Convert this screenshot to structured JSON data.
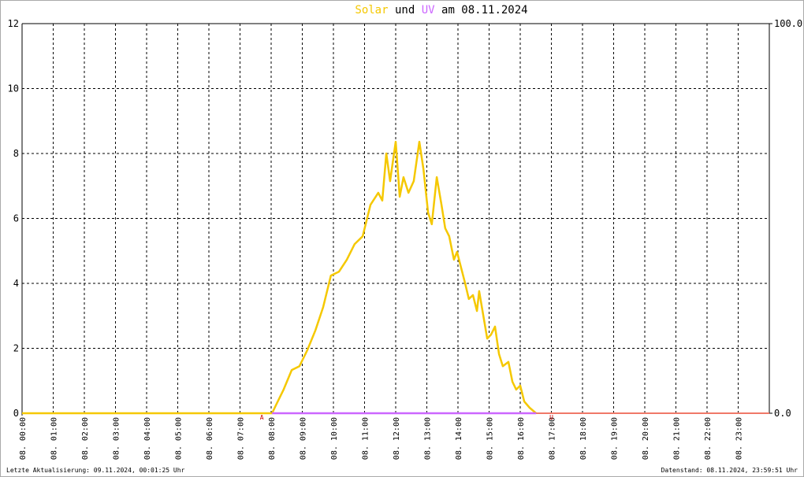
{
  "chart_data": {
    "type": "line",
    "title": [
      {
        "text": "Solar",
        "color": "#f5c800"
      },
      {
        "text": "und",
        "color": "#000000"
      },
      {
        "text": "UV",
        "color": "#cc66ff"
      },
      {
        "text": "am 08.11.2024",
        "color": "#000000"
      }
    ],
    "xlim": [
      0,
      24
    ],
    "xticks": [
      {
        "value": 0,
        "label": "08. 00:00"
      },
      {
        "value": 1,
        "label": "08. 01:00"
      },
      {
        "value": 2,
        "label": "08. 02:00"
      },
      {
        "value": 3,
        "label": "08. 03:00"
      },
      {
        "value": 4,
        "label": "08. 04:00"
      },
      {
        "value": 5,
        "label": "08. 05:00"
      },
      {
        "value": 6,
        "label": "08. 06:00"
      },
      {
        "value": 7,
        "label": "08. 07:00"
      },
      {
        "value": 8,
        "label": "08. 08:00"
      },
      {
        "value": 9,
        "label": "08. 09:00"
      },
      {
        "value": 10,
        "label": "08. 10:00"
      },
      {
        "value": 11,
        "label": "08. 11:00"
      },
      {
        "value": 12,
        "label": "08. 12:00"
      },
      {
        "value": 13,
        "label": "08. 13:00"
      },
      {
        "value": 14,
        "label": "08. 14:00"
      },
      {
        "value": 15,
        "label": "08. 15:00"
      },
      {
        "value": 16,
        "label": "08. 16:00"
      },
      {
        "value": 17,
        "label": "08. 17:00"
      },
      {
        "value": 18,
        "label": "08. 18:00"
      },
      {
        "value": 19,
        "label": "08. 19:00"
      },
      {
        "value": 20,
        "label": "08. 20:00"
      },
      {
        "value": 21,
        "label": "08. 21:00"
      },
      {
        "value": 22,
        "label": "08. 22:00"
      },
      {
        "value": 23,
        "label": "08. 23:00"
      }
    ],
    "ylim": [
      0,
      12
    ],
    "yticks": [
      0,
      2,
      4,
      6,
      8,
      10,
      12
    ],
    "y2lim": [
      0,
      100
    ],
    "y2ticks": [
      {
        "value": 0,
        "label": "0.0"
      },
      {
        "value": 100,
        "label": "100.0"
      }
    ],
    "grid": true,
    "series": [
      {
        "name": "Solar",
        "color": "#f5c800",
        "x": [
          0,
          8.03,
          8.15,
          8.4,
          8.66,
          8.91,
          9.16,
          9.42,
          9.67,
          9.92,
          10.18,
          10.43,
          10.68,
          10.94,
          11.19,
          11.44,
          11.57,
          11.7,
          11.82,
          12.0,
          12.13,
          12.25,
          12.41,
          12.58,
          12.76,
          12.89,
          13.04,
          13.16,
          13.32,
          13.47,
          13.59,
          13.72,
          13.87,
          13.97,
          14.1,
          14.23,
          14.35,
          14.48,
          14.61,
          14.68,
          14.81,
          14.94,
          15.06,
          15.19,
          15.32,
          15.44,
          15.62,
          15.75,
          15.87,
          16.0,
          16.13,
          16.3,
          16.51
        ],
        "values": [
          0,
          0,
          0.24,
          0.73,
          1.33,
          1.45,
          1.94,
          2.55,
          3.27,
          4.24,
          4.36,
          4.73,
          5.21,
          5.45,
          6.42,
          6.79,
          6.55,
          8.0,
          7.15,
          8.36,
          6.67,
          7.27,
          6.79,
          7.15,
          8.36,
          7.52,
          6.18,
          5.82,
          7.27,
          6.42,
          5.7,
          5.45,
          4.73,
          4.97,
          4.48,
          4.0,
          3.52,
          3.64,
          3.15,
          3.76,
          3.03,
          2.3,
          2.42,
          2.67,
          1.82,
          1.45,
          1.58,
          0.97,
          0.73,
          0.85,
          0.36,
          0.17,
          0
        ]
      },
      {
        "name": "UV",
        "color": "#cc66ff",
        "axis": "y2",
        "x": [
          8.03,
          16.51
        ],
        "values": [
          0,
          0
        ]
      }
    ],
    "annotations": [
      {
        "text": "A",
        "x": 7.7
      },
      {
        "text": "U",
        "x": 17.0
      }
    ]
  },
  "footer": {
    "left": "Letzte Aktualisierung: 09.11.2024, 00:01:25 Uhr",
    "right": "Datenstand: 08.11.2024, 23:59:51 Uhr"
  }
}
